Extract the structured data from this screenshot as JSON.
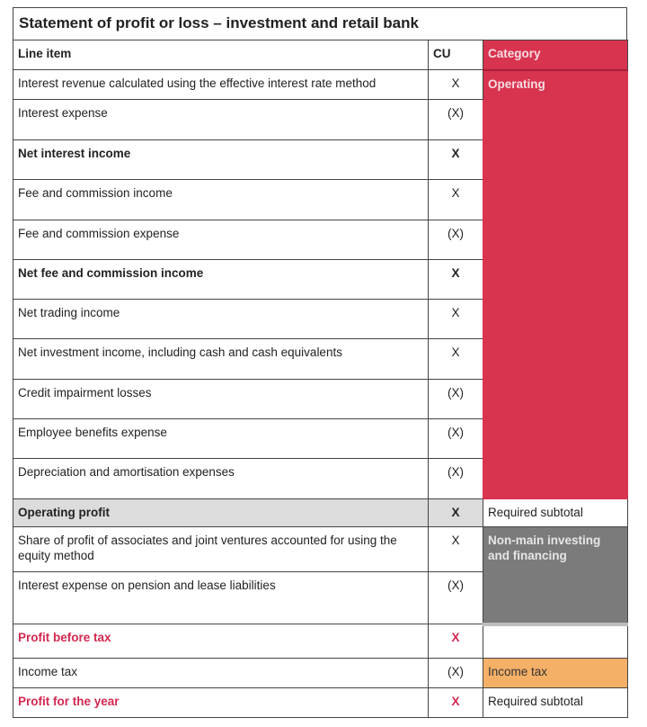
{
  "title": "Statement of profit or loss – investment and retail bank",
  "headers": {
    "line_item": "Line item",
    "cu": "CU",
    "category": "Category"
  },
  "rows": [
    {
      "label": "Interest revenue calculated using the effective interest rate method",
      "cu": "X"
    },
    {
      "label": "Interest expense",
      "cu": "(X)"
    },
    {
      "label": "Net interest income",
      "cu": "X"
    },
    {
      "label": "Fee and commission income",
      "cu": "X"
    },
    {
      "label": "Fee and commission expense",
      "cu": "(X)"
    },
    {
      "label": "Net fee and commission income",
      "cu": "X"
    },
    {
      "label": "Net trading income",
      "cu": "X"
    },
    {
      "label": "Net investment income, including cash and cash equivalents",
      "cu": "X"
    },
    {
      "label": "Credit impairment losses",
      "cu": "(X)"
    },
    {
      "label": "Employee benefits expense",
      "cu": "(X)"
    },
    {
      "label": "Depreciation and amortisation expenses",
      "cu": "(X)"
    },
    {
      "label": "Operating profit",
      "cu": "X"
    },
    {
      "label": "Share of profit of associates and joint ventures accounted for using the equity method",
      "cu": "X"
    },
    {
      "label": "Interest expense on pension and lease liabilities",
      "cu": "(X)"
    },
    {
      "label": "Profit before tax",
      "cu": "X"
    },
    {
      "label": "Income tax",
      "cu": "(X)"
    },
    {
      "label": "Profit for the year",
      "cu": "X"
    }
  ],
  "categories": {
    "operating": "Operating",
    "required_subtotal_1": "Required subtotal",
    "non_main": "Non-main investing and financing",
    "income_tax": "Income tax",
    "required_subtotal_2": "Required subtotal"
  },
  "colors": {
    "operating": "#d8334f",
    "non_main": "#7b7b7b",
    "income_tax": "#f5b067",
    "highlight_text": "#d2284f",
    "subtotal_row": "#dcdcdc"
  }
}
